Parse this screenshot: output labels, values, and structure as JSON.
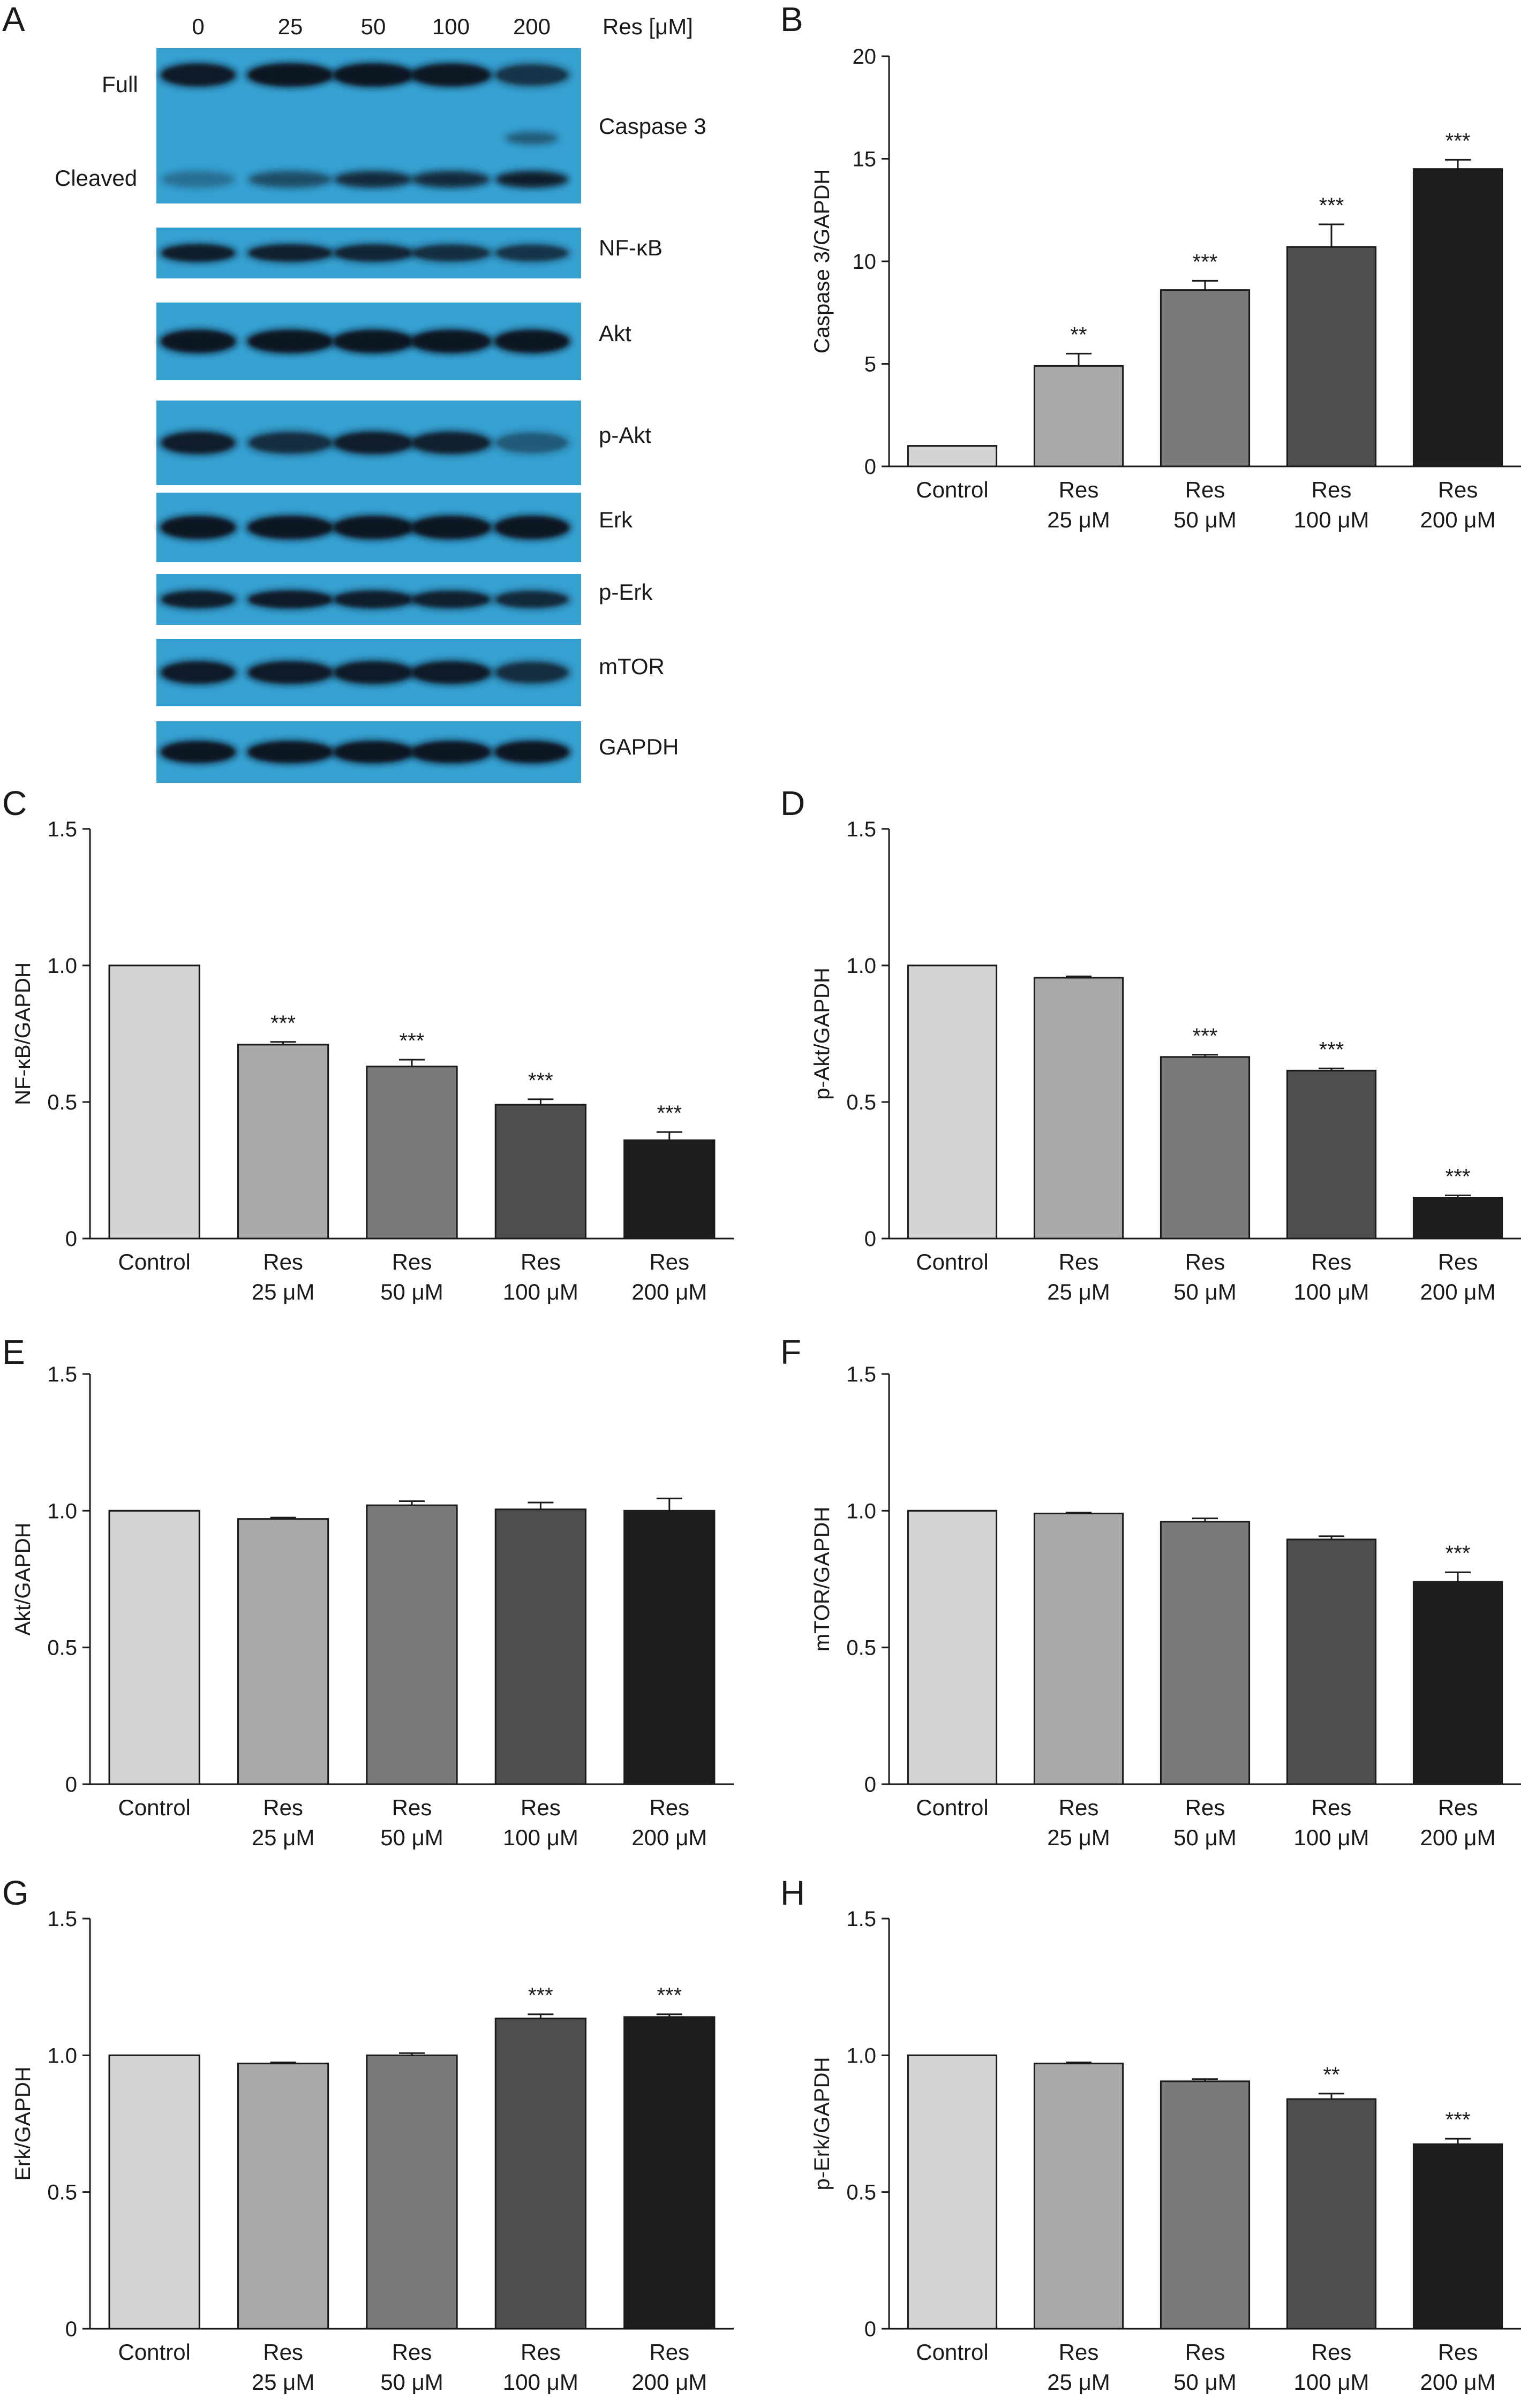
{
  "figure": {
    "panel_a": {
      "letter": "A",
      "concentrations": [
        "0",
        "25",
        "50",
        "100",
        "200"
      ],
      "unit_label": "Res [μM]",
      "caspase_labels": {
        "full": "Full",
        "cleaved": "Cleaved"
      },
      "blots": [
        {
          "label": "Caspase 3",
          "band_intensity": [
            0.85,
            0.95,
            0.95,
            0.9,
            0.55
          ],
          "cleaved_intensity": [
            0.35,
            0.6,
            0.85,
            0.85,
            0.95
          ]
        },
        {
          "label": "NF-κB",
          "band_intensity": [
            0.8,
            0.75,
            0.7,
            0.6,
            0.55
          ]
        },
        {
          "label": "Akt",
          "band_intensity": [
            0.95,
            0.95,
            0.95,
            0.95,
            0.95
          ]
        },
        {
          "label": "p-Akt",
          "band_intensity": [
            0.8,
            0.6,
            0.8,
            0.75,
            0.3
          ]
        },
        {
          "label": "Erk",
          "band_intensity": [
            0.95,
            0.95,
            0.95,
            0.95,
            0.95
          ]
        },
        {
          "label": "p-Erk",
          "band_intensity": [
            0.8,
            0.85,
            0.8,
            0.75,
            0.65
          ]
        },
        {
          "label": "mTOR",
          "band_intensity": [
            0.85,
            0.85,
            0.85,
            0.85,
            0.6
          ]
        },
        {
          "label": "GAPDH",
          "band_intensity": [
            0.95,
            0.95,
            0.95,
            0.95,
            0.95
          ]
        }
      ]
    }
  },
  "chart_data": [
    {
      "panel": "B",
      "type": "bar",
      "ylabel": "Caspase 3/GAPDH",
      "ylim": [
        0,
        20
      ],
      "yticks": [
        0,
        5,
        10,
        15,
        20
      ],
      "categories": [
        "Control",
        "Res 25 μM",
        "Res 50 μM",
        "Res 100 μM",
        "Res 200 μM"
      ],
      "values": [
        1.0,
        4.9,
        8.6,
        10.7,
        14.5
      ],
      "errors": [
        0,
        0.6,
        0.45,
        1.1,
        0.45
      ],
      "significance": [
        "",
        "**",
        "***",
        "***",
        "***"
      ],
      "colors": [
        "#d4d4d4",
        "#a8a8a8",
        "#7a7a7a",
        "#4e4e4e",
        "#1e1e1e"
      ]
    },
    {
      "panel": "C",
      "type": "bar",
      "ylabel": "NF-κB/GAPDH",
      "ylim": [
        0,
        1.5
      ],
      "yticks": [
        "0",
        "0.5",
        "1.0",
        "1.5"
      ],
      "categories": [
        "Control",
        "Res 25 μM",
        "Res 50 μM",
        "Res 100 μM",
        "Res 200 μM"
      ],
      "values": [
        1.0,
        0.71,
        0.63,
        0.49,
        0.36
      ],
      "errors": [
        0,
        0.01,
        0.025,
        0.02,
        0.03
      ],
      "significance": [
        "",
        "***",
        "***",
        "***",
        "***"
      ],
      "colors": [
        "#d4d4d4",
        "#a8a8a8",
        "#7a7a7a",
        "#4e4e4e",
        "#1e1e1e"
      ]
    },
    {
      "panel": "D",
      "type": "bar",
      "ylabel": "p-Akt/GAPDH",
      "ylim": [
        0,
        1.5
      ],
      "yticks": [
        "0",
        "0.5",
        "1.0",
        "1.5"
      ],
      "categories": [
        "Control",
        "Res 25 μM",
        "Res 50 μM",
        "Res 100 μM",
        "Res 200 μM"
      ],
      "values": [
        1.0,
        0.955,
        0.665,
        0.615,
        0.15
      ],
      "errors": [
        0,
        0.005,
        0.008,
        0.008,
        0.008
      ],
      "significance": [
        "",
        "",
        "***",
        "***",
        "***"
      ],
      "colors": [
        "#d4d4d4",
        "#a8a8a8",
        "#7a7a7a",
        "#4e4e4e",
        "#1e1e1e"
      ]
    },
    {
      "panel": "E",
      "type": "bar",
      "ylabel": "Akt/GAPDH",
      "ylim": [
        0,
        1.5
      ],
      "yticks": [
        "0",
        "0.5",
        "1.0",
        "1.5"
      ],
      "categories": [
        "Control",
        "Res 25 μM",
        "Res 50 μM",
        "Res 100 μM",
        "Res 200 μM"
      ],
      "values": [
        1.0,
        0.97,
        1.02,
        1.005,
        1.0
      ],
      "errors": [
        0,
        0.005,
        0.015,
        0.025,
        0.045
      ],
      "significance": [
        "",
        "",
        "",
        "",
        ""
      ],
      "colors": [
        "#d4d4d4",
        "#a8a8a8",
        "#7a7a7a",
        "#4e4e4e",
        "#1e1e1e"
      ]
    },
    {
      "panel": "F",
      "type": "bar",
      "ylabel": "mTOR/GAPDH",
      "ylim": [
        0,
        1.5
      ],
      "yticks": [
        "0",
        "0.5",
        "1.0",
        "1.5"
      ],
      "categories": [
        "Control",
        "Res 25 μM",
        "Res 50 μM",
        "Res 100 μM",
        "Res 200 μM"
      ],
      "values": [
        1.0,
        0.99,
        0.96,
        0.895,
        0.74
      ],
      "errors": [
        0,
        0.003,
        0.012,
        0.012,
        0.035
      ],
      "significance": [
        "",
        "",
        "",
        "",
        "***"
      ],
      "colors": [
        "#d4d4d4",
        "#a8a8a8",
        "#7a7a7a",
        "#4e4e4e",
        "#1e1e1e"
      ]
    },
    {
      "panel": "G",
      "type": "bar",
      "ylabel": "Erk/GAPDH",
      "ylim": [
        0,
        1.5
      ],
      "yticks": [
        "0",
        "0.5",
        "1.0",
        "1.5"
      ],
      "categories": [
        "Control",
        "Res 25 μM",
        "Res 50 μM",
        "Res 100 μM",
        "Res 200 μM"
      ],
      "values": [
        1.0,
        0.97,
        1.0,
        1.135,
        1.14
      ],
      "errors": [
        0,
        0.004,
        0.008,
        0.015,
        0.01
      ],
      "significance": [
        "",
        "",
        "",
        "***",
        "***"
      ],
      "colors": [
        "#d4d4d4",
        "#a8a8a8",
        "#7a7a7a",
        "#4e4e4e",
        "#1e1e1e"
      ]
    },
    {
      "panel": "H",
      "type": "bar",
      "ylabel": "p-Erk/GAPDH",
      "ylim": [
        0,
        1.5
      ],
      "yticks": [
        "0",
        "0.5",
        "1.0",
        "1.5"
      ],
      "categories": [
        "Control",
        "Res 25 μM",
        "Res 50 μM",
        "Res 100 μM",
        "Res 200 μM"
      ],
      "values": [
        1.0,
        0.97,
        0.905,
        0.84,
        0.675
      ],
      "errors": [
        0,
        0.004,
        0.008,
        0.02,
        0.02
      ],
      "significance": [
        "",
        "",
        "",
        "**",
        "***"
      ],
      "colors": [
        "#d4d4d4",
        "#a8a8a8",
        "#7a7a7a",
        "#4e4e4e",
        "#1e1e1e"
      ]
    }
  ]
}
